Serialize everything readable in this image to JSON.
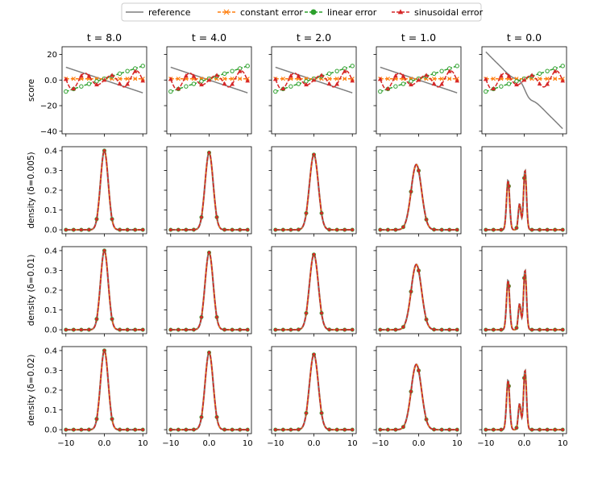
{
  "chart_data": {
    "type": "line",
    "legend": {
      "placement": "top-center",
      "entries": [
        {
          "name": "reference",
          "color": "#7f7f7f",
          "style": "solid",
          "marker": "none"
        },
        {
          "name": "constant error",
          "color": "#ff7f0e",
          "style": "dashed",
          "marker": "x"
        },
        {
          "name": "linear error",
          "color": "#2ca02c",
          "style": "dashed",
          "marker": "circle"
        },
        {
          "name": "sinusoidal error",
          "color": "#d62728",
          "style": "dashed",
          "marker": "triangle"
        }
      ]
    },
    "columns": [
      {
        "title": "t = 8.0",
        "t": 8.0
      },
      {
        "title": "t = 4.0",
        "t": 4.0
      },
      {
        "title": "t = 2.0",
        "t": 2.0
      },
      {
        "title": "t = 1.0",
        "t": 1.0
      },
      {
        "title": "t = 0.0",
        "t": 0.0
      }
    ],
    "rows": [
      {
        "ylabel": "score",
        "kind": "score",
        "ylim": [
          -42,
          26
        ],
        "yticks": [
          20,
          0,
          -20,
          -40
        ]
      },
      {
        "ylabel": "density (δ=0.005)",
        "kind": "density",
        "delta": 0.005,
        "ylim": [
          -0.02,
          0.42
        ],
        "yticks": [
          0.0,
          0.1,
          0.2,
          0.3,
          0.4
        ]
      },
      {
        "ylabel": "density (δ=0.01)",
        "kind": "density",
        "delta": 0.01,
        "ylim": [
          -0.02,
          0.42
        ],
        "yticks": [
          0.0,
          0.1,
          0.2,
          0.3,
          0.4
        ]
      },
      {
        "ylabel": "density (δ=0.02)",
        "kind": "density",
        "delta": 0.02,
        "ylim": [
          -0.02,
          0.42
        ],
        "yticks": [
          0.0,
          0.1,
          0.2,
          0.3,
          0.4
        ]
      }
    ],
    "xlim": [
      -11,
      11
    ],
    "xticks": [
      -10,
      0,
      10
    ],
    "grid": false,
    "score_series": {
      "reference": {
        "x": [
          -10,
          10
        ],
        "y_t_gt0": [
          10,
          -10
        ],
        "y_t0": [
          22,
          -38
        ],
        "t0_kink": [
          0,
          0
        ]
      },
      "constant error": {
        "offset": 1
      },
      "linear error": {
        "slope": 1,
        "x": [
          -10,
          10
        ],
        "y": [
          -9,
          11
        ]
      },
      "sinusoidal error": {
        "amplitude": 8
      }
    },
    "density_series": {
      "t=8.0": {
        "peaks": [
          [
            0,
            0.4
          ]
        ]
      },
      "t=4.0": {
        "peaks": [
          [
            0,
            0.39
          ]
        ]
      },
      "t=2.0": {
        "peaks": [
          [
            0,
            0.38
          ]
        ]
      },
      "t=1.0": {
        "peaks": [
          [
            -0.6,
            0.33
          ]
        ]
      },
      "t=0.0": {
        "peaks": [
          [
            -4.2,
            0.25
          ],
          [
            -1.2,
            0.13
          ],
          [
            0.2,
            0.3
          ]
        ]
      }
    }
  }
}
